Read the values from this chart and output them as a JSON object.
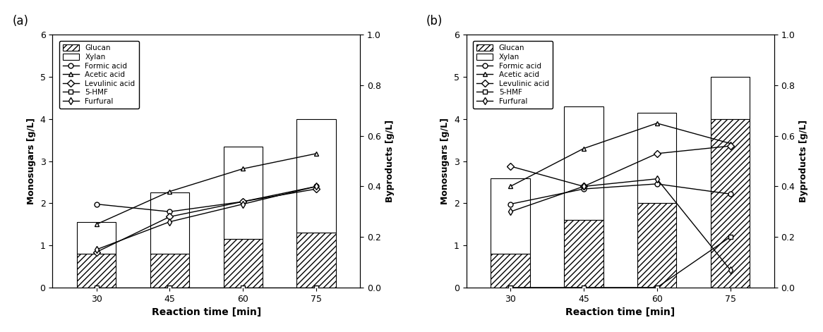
{
  "time_points": [
    30,
    45,
    60,
    75
  ],
  "panel_a": {
    "glucan": [
      0.8,
      0.8,
      1.15,
      1.3
    ],
    "xylan": [
      0.75,
      1.45,
      2.2,
      2.7
    ],
    "formic_acid": [
      0.33,
      0.3,
      0.34,
      0.4
    ],
    "acetic_acid": [
      0.25,
      0.38,
      0.47,
      0.53
    ],
    "levulinic_acid": [
      0.14,
      0.28,
      0.34,
      0.39
    ],
    "hmf": [
      0.0,
      0.0,
      0.0,
      0.0
    ],
    "furfural": [
      0.15,
      0.26,
      0.33,
      0.4
    ]
  },
  "panel_b": {
    "glucan": [
      0.8,
      1.6,
      2.0,
      4.0
    ],
    "xylan": [
      1.8,
      2.7,
      2.15,
      1.0
    ],
    "formic_acid": [
      0.33,
      0.39,
      0.41,
      0.37
    ],
    "acetic_acid": [
      0.4,
      0.55,
      0.65,
      0.57
    ],
    "levulinic_acid": [
      0.48,
      0.4,
      0.53,
      0.56
    ],
    "hmf": [
      0.0,
      0.0,
      0.0,
      0.2
    ],
    "furfural": [
      0.3,
      0.4,
      0.43,
      0.07
    ]
  },
  "ylabel_left": "Monosugars [g/L]",
  "ylabel_right": "Byproducts [g/L]",
  "xlabel": "Reaction time [min]",
  "ylim_left": [
    0,
    6
  ],
  "ylim_right": [
    0,
    1.0
  ],
  "label_a": "(a)",
  "label_b": "(b)"
}
